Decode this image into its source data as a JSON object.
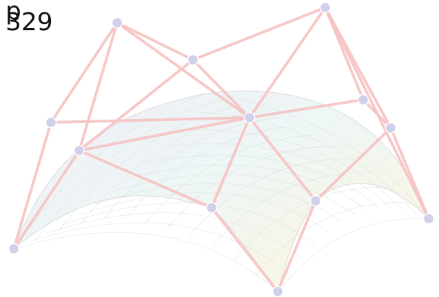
{
  "label": {
    "line1": "p",
    "line2": "329"
  },
  "colors": {
    "control_edge": "#f7c3c3",
    "control_point": "#cfd0ea",
    "surface_grid": "#d7d7d7",
    "surface_tint_a": "#e8f3f6",
    "surface_tint_b": "#f7f5e6",
    "surface_tint_c": "#f1eef7"
  }
}
